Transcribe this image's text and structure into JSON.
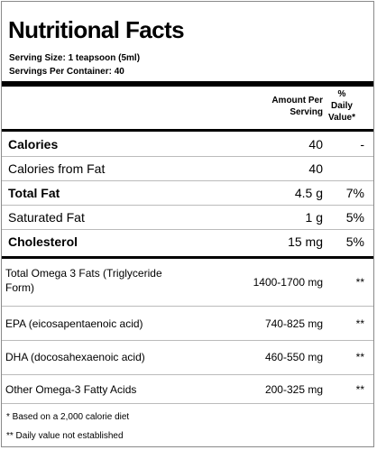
{
  "title": "Nutritional Facts",
  "serving_size": "Serving Size:  1 teapsoon (5ml)",
  "servings_per_container": "Servings Per Container:  40",
  "headers": {
    "amount_line1": "Amount Per",
    "amount_line2": "Serving",
    "dv_line1": "%",
    "dv_line2": "Daily",
    "dv_line3": "Value*"
  },
  "top_rows": [
    {
      "name": "Calories",
      "amount": "40",
      "dv": "-"
    },
    {
      "name": "Calories from Fat",
      "amount": "40",
      "dv": ""
    },
    {
      "name": "Total Fat",
      "amount": "4.5 g",
      "dv": "7%"
    },
    {
      "name": "Saturated Fat",
      "amount": "1 g",
      "dv": "5%"
    },
    {
      "name": "Cholesterol",
      "amount": "15 mg",
      "dv": "5%"
    }
  ],
  "bottom_rows": [
    {
      "name_line1": "Total Omega 3 Fats (Triglyceride",
      "name_line2": "Form)",
      "amount": "1400-1700 mg",
      "dv": "**"
    },
    {
      "name": "EPA (eicosapentaenoic acid)",
      "amount": "740-825 mg",
      "dv": "**"
    },
    {
      "name": "DHA (docosahexaenoic acid)",
      "amount": "460-550 mg",
      "dv": "**"
    },
    {
      "name": "Other Omega-3 Fatty Acids",
      "amount": "200-325 mg",
      "dv": "**"
    }
  ],
  "footnotes": {
    "note1": "* Based on a 2,000 calorie diet",
    "note2": "** Daily value not established"
  }
}
